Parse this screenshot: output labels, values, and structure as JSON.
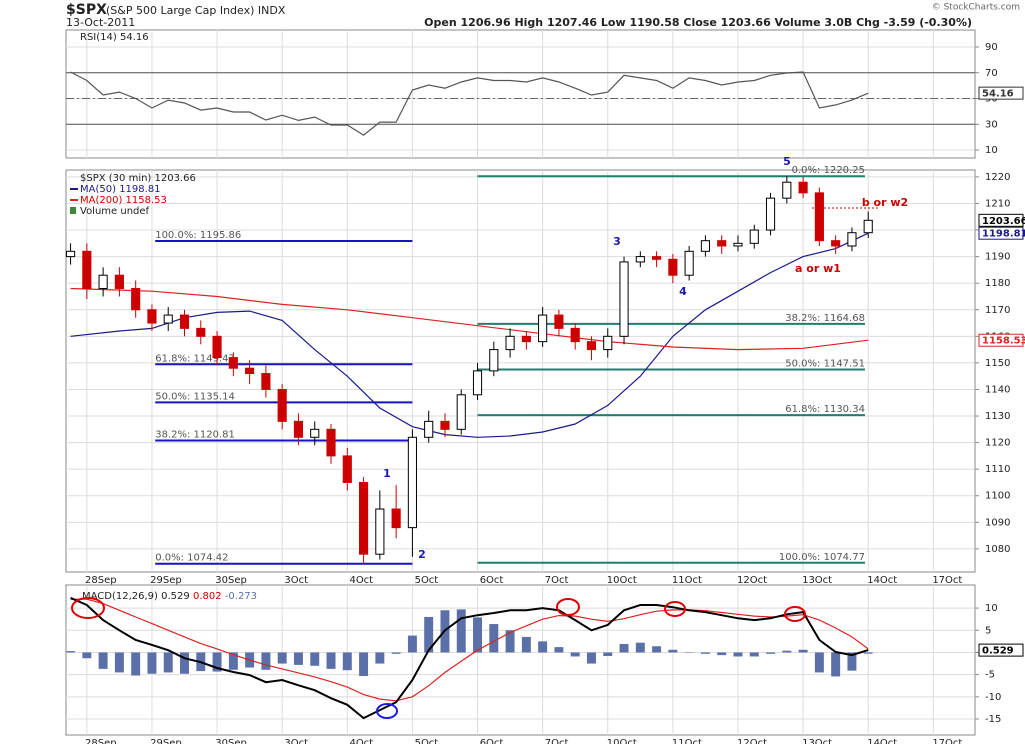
{
  "chart_data": [
    {
      "type": "line",
      "name": "RSI(14)",
      "x": [
        -0.25,
        0,
        0.25,
        0.5,
        0.75,
        1,
        1.25,
        1.5,
        1.75,
        2,
        2.25,
        2.5,
        2.75,
        3,
        3.25,
        3.5,
        3.75,
        4,
        4.25,
        4.5,
        4.75,
        5,
        5.25,
        5.5,
        5.75,
        6,
        6.25,
        6.5,
        6.75,
        7,
        7.25,
        7.5,
        7.75,
        8,
        8.25,
        8.5,
        8.75,
        9,
        9.25,
        9.5,
        9.75,
        10,
        10.25,
        10.5,
        10.75,
        11,
        11.25,
        11.5,
        11.75,
        12
      ],
      "series": [
        {
          "color": "#555555",
          "values": [
            70.6,
            64,
            52.7,
            55,
            50,
            42.6,
            48.8,
            46.5,
            41,
            42.6,
            39.5,
            39.5,
            33.3,
            37,
            33,
            35.6,
            29.4,
            29.4,
            21.6,
            31.7,
            31.7,
            56.6,
            60.5,
            58,
            62.8,
            66,
            64,
            64,
            62.8,
            66,
            62.8,
            58,
            52.7,
            55,
            68,
            66,
            64,
            58,
            66,
            64,
            60.5,
            62.8,
            64,
            68,
            69.8,
            70.6,
            42.6,
            45,
            48.8,
            54.16
          ]
        }
      ],
      "xlim": [
        -0.32,
        13.64
      ],
      "ylim": [
        3.8,
        103.2
      ],
      "yticks": [
        10,
        30,
        50,
        70,
        90
      ],
      "levels": [
        70,
        30
      ],
      "midline": 50,
      "grid": true
    },
    {
      "type": "candlestick",
      "title": "$SPX",
      "subtitle": "(S&P 500 Large Cap Index) INDX",
      "date": "13-Oct-2011",
      "quote": "Open 1206.96 High 1207.46 Low 1190.58 Close 1203.66 Volume 3.0B Chg -3.59 (-0.30%)",
      "source": "© StockCharts.com",
      "name": "$SPX (30 min)",
      "volume_label": "Volume undef",
      "up_color": "#000000",
      "down_color": "#cc0000",
      "x": [
        -0.25,
        0,
        0.25,
        0.5,
        0.75,
        1,
        1.25,
        1.5,
        1.75,
        2,
        2.25,
        2.5,
        2.75,
        3,
        3.25,
        3.5,
        3.75,
        4,
        4.25,
        4.5,
        4.75,
        5,
        5.25,
        5.5,
        5.75,
        6,
        6.25,
        6.5,
        6.75,
        7,
        7.25,
        7.5,
        7.75,
        8,
        8.25,
        8.5,
        8.75,
        9,
        9.25,
        9.5,
        9.75,
        10,
        10.25,
        10.5,
        10.75,
        11,
        11.25,
        11.5,
        11.75,
        12
      ],
      "open": [
        1190,
        1192,
        1178,
        1183,
        1178,
        1170,
        1165,
        1168,
        1163,
        1160,
        1152,
        1148,
        1146,
        1140,
        1128,
        1122,
        1125,
        1115,
        1105,
        1078,
        1095,
        1088,
        1122,
        1128,
        1125,
        1138,
        1147,
        1155,
        1160,
        1158,
        1168,
        1163,
        1158,
        1155,
        1160,
        1188,
        1190,
        1189,
        1183,
        1192,
        1196,
        1194,
        1195,
        1200,
        1212,
        1218,
        1214,
        1196,
        1194,
        1199
      ],
      "high": [
        1195,
        1195,
        1186,
        1186,
        1181,
        1172,
        1171,
        1170,
        1166,
        1162,
        1154,
        1151,
        1149,
        1142,
        1131,
        1128,
        1127,
        1118,
        1107,
        1102,
        1104,
        1125,
        1132,
        1131,
        1140,
        1150,
        1158,
        1163,
        1162,
        1171,
        1170,
        1165,
        1160,
        1163,
        1190,
        1192,
        1192,
        1191,
        1194,
        1198,
        1198,
        1198,
        1202,
        1214,
        1220.25,
        1220,
        1216,
        1198,
        1201,
        1207
      ],
      "low": [
        1187,
        1174,
        1175,
        1175,
        1167,
        1162,
        1162,
        1160,
        1157,
        1149,
        1145,
        1142,
        1137,
        1125,
        1119,
        1119,
        1112,
        1102,
        1074.42,
        1076,
        1084,
        1077,
        1120,
        1122,
        1123,
        1136,
        1145,
        1152,
        1155,
        1156,
        1160,
        1155,
        1151,
        1152,
        1157,
        1186,
        1186,
        1180,
        1181,
        1190,
        1191,
        1192,
        1193,
        1198,
        1210,
        1212,
        1194,
        1191,
        1192,
        1197
      ],
      "close": [
        1192,
        1178,
        1183,
        1178,
        1170,
        1165,
        1168,
        1163,
        1160,
        1152,
        1148,
        1146,
        1140,
        1128,
        1122,
        1125,
        1115,
        1105,
        1078,
        1095,
        1088,
        1122,
        1128,
        1125,
        1138,
        1147,
        1155,
        1160,
        1158,
        1168,
        1163,
        1158,
        1155,
        1160,
        1188,
        1190,
        1189,
        1183,
        1192,
        1196,
        1194,
        1195,
        1200,
        1212,
        1218,
        1214,
        1196,
        1194,
        1199,
        1203.66
      ],
      "overlays": [
        {
          "name": "MA(50)",
          "color": "#1a1a8c",
          "x": [
            -0.25,
            0.5,
            1,
            1.5,
            2,
            2.5,
            3,
            3.5,
            4,
            4.5,
            5,
            5.5,
            6,
            6.5,
            7,
            7.5,
            8,
            8.5,
            9,
            9.5,
            10,
            10.5,
            11,
            11.5,
            12
          ],
          "values": [
            1160,
            1162,
            1163,
            1167,
            1169,
            1169.5,
            1166,
            1155,
            1145,
            1133,
            1126,
            1123,
            1122,
            1122.5,
            1124,
            1127,
            1134,
            1145,
            1160,
            1170,
            1177,
            1184,
            1190,
            1193,
            1198.81
          ]
        },
        {
          "name": "MA(200)",
          "color": "#dd2222",
          "x": [
            -0.25,
            1,
            2,
            3,
            4,
            5,
            6,
            7,
            8,
            9,
            10,
            11,
            12
          ],
          "values": [
            1178,
            1177,
            1175,
            1172,
            1170,
            1167,
            1164,
            1161,
            1158,
            1156,
            1155,
            1155.5,
            1158.53
          ]
        }
      ],
      "fib_sets": [
        {
          "color": "#1515c0",
          "levels": [
            {
              "value": 1195.86,
              "label": "100.0%: 1195.86"
            },
            {
              "value": 1149.47,
              "label": "61.8%: 1149.47"
            },
            {
              "value": 1135.14,
              "label": "50.0%: 1135.14"
            },
            {
              "value": 1120.81,
              "label": "38.2%: 1120.81"
            },
            {
              "value": 1074.42,
              "label": "0.0%: 1074.42"
            }
          ]
        },
        {
          "color": "#1f7f6f",
          "levels": [
            {
              "value": 1220.25,
              "label": "0.0%: 1220.25"
            },
            {
              "value": 1164.68,
              "label": "38.2%: 1164.68"
            },
            {
              "value": 1147.51,
              "label": "50.0%: 1147.51"
            },
            {
              "value": 1130.34,
              "label": "61.8%: 1130.34"
            },
            {
              "value": 1074.77,
              "label": "100.0%: 1074.77"
            }
          ]
        }
      ],
      "annotations": [
        {
          "text": "1",
          "color": "#1a1aa6"
        },
        {
          "text": "2",
          "color": "#1a1aa6"
        },
        {
          "text": "3",
          "color": "#1a1aa6"
        },
        {
          "text": "4",
          "color": "#1a1aa6"
        },
        {
          "text": "5",
          "color": "#1a1aa6"
        },
        {
          "text": "a or w1",
          "color": "#cc0000"
        },
        {
          "text": "b or w2",
          "color": "#cc0000"
        }
      ],
      "xlim": [
        -0.32,
        13.64
      ],
      "ylim": [
        1071.3,
        1222.6
      ],
      "yticks": [
        1080,
        1090,
        1100,
        1110,
        1120,
        1130,
        1140,
        1150,
        1160,
        1170,
        1180,
        1190,
        1200,
        1210,
        1220
      ],
      "xticks": [
        {
          "value": 0,
          "label": "28Sep"
        },
        {
          "value": 1,
          "label": "29Sep"
        },
        {
          "value": 2,
          "label": "30Sep"
        },
        {
          "value": 3,
          "label": "3Oct"
        },
        {
          "value": 4,
          "label": "4Oct"
        },
        {
          "value": 5,
          "label": "5Oct"
        },
        {
          "value": 6,
          "label": "6Oct"
        },
        {
          "value": 7,
          "label": "7Oct"
        },
        {
          "value": 8,
          "label": "10Oct"
        },
        {
          "value": 9,
          "label": "11Oct"
        },
        {
          "value": 10,
          "label": "12Oct"
        },
        {
          "value": 11,
          "label": "13Oct"
        },
        {
          "value": 12,
          "label": "14Oct"
        },
        {
          "value": 13,
          "label": "17Oct"
        }
      ],
      "grid": true
    },
    {
      "type": "macd",
      "name": "MACD(12,26,9)",
      "x": [
        -0.25,
        0,
        0.25,
        0.5,
        0.75,
        1,
        1.25,
        1.5,
        1.75,
        2,
        2.25,
        2.5,
        2.75,
        3,
        3.25,
        3.5,
        3.75,
        4,
        4.25,
        4.5,
        4.75,
        5,
        5.25,
        5.5,
        5.75,
        6,
        6.25,
        6.5,
        6.75,
        7,
        7.25,
        7.5,
        7.75,
        8,
        8.25,
        8.5,
        8.75,
        9,
        9.25,
        9.5,
        9.75,
        10,
        10.25,
        10.5,
        10.75,
        11,
        11.25,
        11.5,
        11.75,
        12
      ],
      "series": [
        {
          "color": "#5b6fa8",
          "style": "histogram",
          "values": [
            0.3,
            -1.3,
            -3.7,
            -4.5,
            -5.2,
            -4.8,
            -4.5,
            -4.8,
            -4.2,
            -4.3,
            -3.9,
            -3.4,
            -3.9,
            -2.5,
            -2.8,
            -3,
            -3.7,
            -4,
            -5.3,
            -2.5,
            -0.3,
            3.8,
            8,
            9.5,
            9.7,
            7.9,
            6.4,
            5,
            3.5,
            2.5,
            1.2,
            -0.9,
            -2.5,
            -0.8,
            1.9,
            2.2,
            1.4,
            0.6,
            -0.1,
            -0.3,
            -0.6,
            -0.9,
            -0.9,
            -0.3,
            0.4,
            0.6,
            -4.5,
            -5.4,
            -4.1,
            -0.273
          ]
        },
        {
          "color": "#dd2222",
          "style": "line",
          "values": [
            12,
            12,
            11,
            9.5,
            8,
            6.5,
            5,
            3.5,
            2,
            0.8,
            -0.5,
            -1.7,
            -2.8,
            -3.7,
            -4.6,
            -5.5,
            -6.6,
            -7.8,
            -9.5,
            -10.5,
            -10.9,
            -10,
            -7.5,
            -4.5,
            -2,
            0.5,
            2.5,
            4.5,
            6,
            7.5,
            8.3,
            8.2,
            7.5,
            7,
            7.6,
            8.5,
            9.3,
            9.6,
            9.6,
            9.4,
            9,
            8.6,
            8.2,
            8,
            8.2,
            8.5,
            7.3,
            5.5,
            3.5,
            0.802
          ]
        },
        {
          "color": "#000000",
          "style": "line",
          "values": [
            12.3,
            10.7,
            7.3,
            5,
            2.8,
            1.7,
            0.5,
            -1.3,
            -2.2,
            -3.5,
            -4.4,
            -5.1,
            -6.7,
            -6.2,
            -7.4,
            -8.5,
            -10.3,
            -11.8,
            -14.8,
            -13,
            -11.2,
            -6.2,
            0.5,
            5,
            7.7,
            8.4,
            8.9,
            9.5,
            9.5,
            10,
            9.5,
            7.3,
            5,
            6.2,
            9.5,
            10.7,
            10.7,
            10.2,
            9.5,
            9.1,
            8.4,
            7.7,
            7.3,
            7.7,
            8.6,
            9.1,
            2.8,
            0.1,
            -0.6,
            0.529
          ]
        }
      ],
      "xlim": [
        -0.32,
        13.64
      ],
      "ylim": [
        -18.6,
        15.2
      ],
      "yticks": [
        -15,
        -10,
        -5,
        0,
        5,
        10
      ],
      "xticks": [
        {
          "value": 0,
          "label": "28Sep"
        },
        {
          "value": 1,
          "label": "29Sep"
        },
        {
          "value": 2,
          "label": "30Sep"
        },
        {
          "value": 3,
          "label": "3Oct"
        },
        {
          "value": 4,
          "label": "4Oct"
        },
        {
          "value": 5,
          "label": "5Oct"
        },
        {
          "value": 6,
          "label": "6Oct"
        },
        {
          "value": 7,
          "label": "7Oct"
        },
        {
          "value": 8,
          "label": "10Oct"
        },
        {
          "value": 9,
          "label": "11Oct"
        },
        {
          "value": 10,
          "label": "12Oct"
        },
        {
          "value": 11,
          "label": "13Oct"
        },
        {
          "value": 12,
          "label": "14Oct"
        },
        {
          "value": 13,
          "label": "17Oct"
        }
      ],
      "grid": true
    }
  ]
}
